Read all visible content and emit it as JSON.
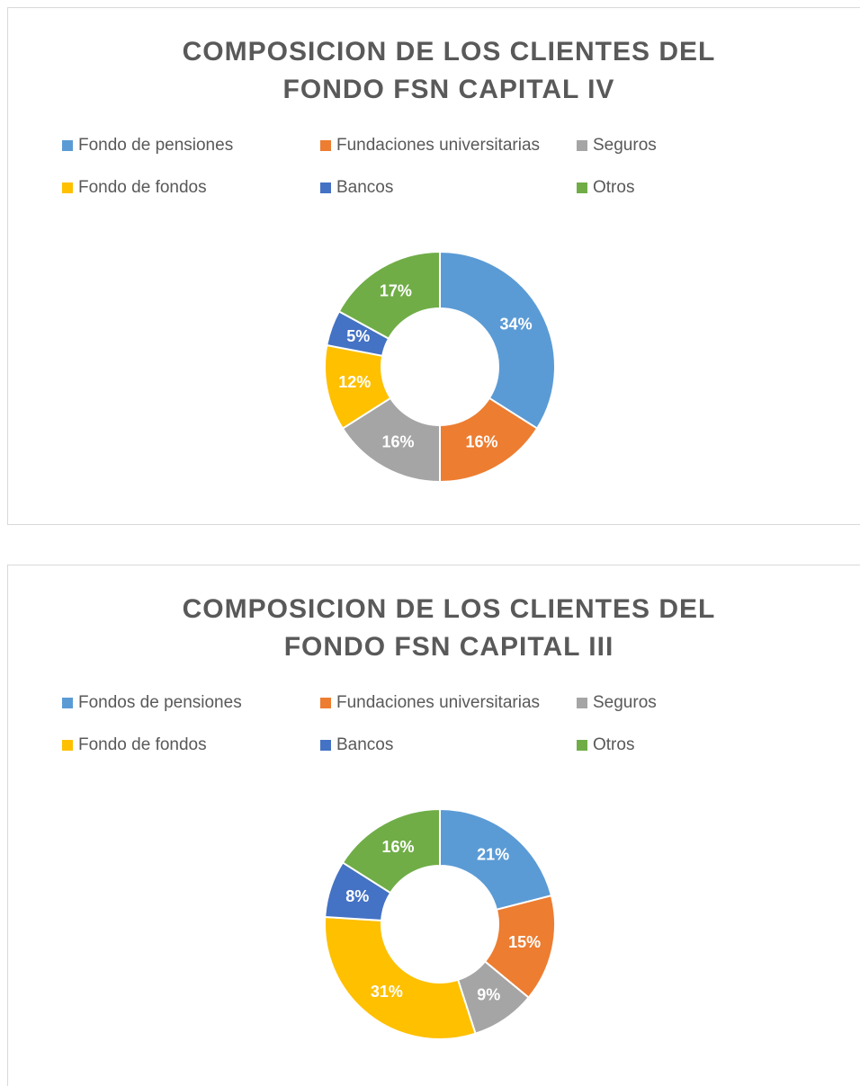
{
  "chart_data": [
    {
      "type": "donut",
      "title": "COMPOSICION DE LOS CLIENTES DEL FONDO FSN CAPITAL IV",
      "categories": [
        "Fondo de pensiones",
        "Fundaciones universitarias",
        "Seguros",
        "Fondo de fondos",
        "Bancos",
        "Otros"
      ],
      "values": [
        34,
        16,
        16,
        12,
        5,
        17
      ],
      "value_labels": [
        "34%",
        "16%",
        "16%",
        "12%",
        "5%",
        "17%"
      ],
      "colors": [
        "#5b9bd5",
        "#ed7d31",
        "#a5a5a5",
        "#ffc000",
        "#4472c4",
        "#70ad47"
      ],
      "legend": "top"
    },
    {
      "type": "donut",
      "title": "COMPOSICION DE LOS CLIENTES DEL FONDO FSN CAPITAL III",
      "categories": [
        "Fondos de pensiones",
        "Fundaciones universitarias",
        "Seguros",
        "Fondo de fondos",
        "Bancos",
        "Otros"
      ],
      "values": [
        21,
        15,
        9,
        31,
        8,
        16
      ],
      "value_labels": [
        "21%",
        "15%",
        "9%",
        "31%",
        "8%",
        "16%"
      ],
      "colors": [
        "#5b9bd5",
        "#ed7d31",
        "#a5a5a5",
        "#ffc000",
        "#4472c4",
        "#70ad47"
      ],
      "legend": "top"
    }
  ]
}
